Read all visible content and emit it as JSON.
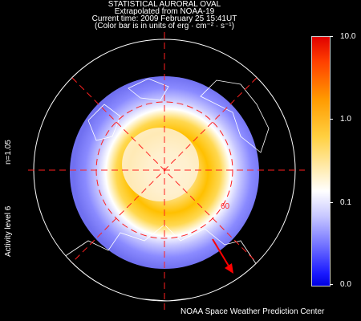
{
  "header": {
    "title": "STATISTICAL AURORAL OVAL",
    "source": "Extrapolated from NOAA-19",
    "time": "Current time: 2009 February 25 15:41UT",
    "units": "(Color bar is in units of erg · cm⁻² · s⁻¹)"
  },
  "side_labels": {
    "n_value": "n=1.05",
    "activity": "Activity level 6"
  },
  "map": {
    "latitude_label": "60"
  },
  "colorbar": {
    "ticks": [
      "10.0",
      "1.0",
      "0.1",
      "0.0"
    ]
  },
  "footer": {
    "credit": "NOAA Space Weather Prediction Center"
  },
  "colors": {
    "grid": "#ff2020",
    "arrow": "#ff0000",
    "coast": "#ffffff"
  }
}
